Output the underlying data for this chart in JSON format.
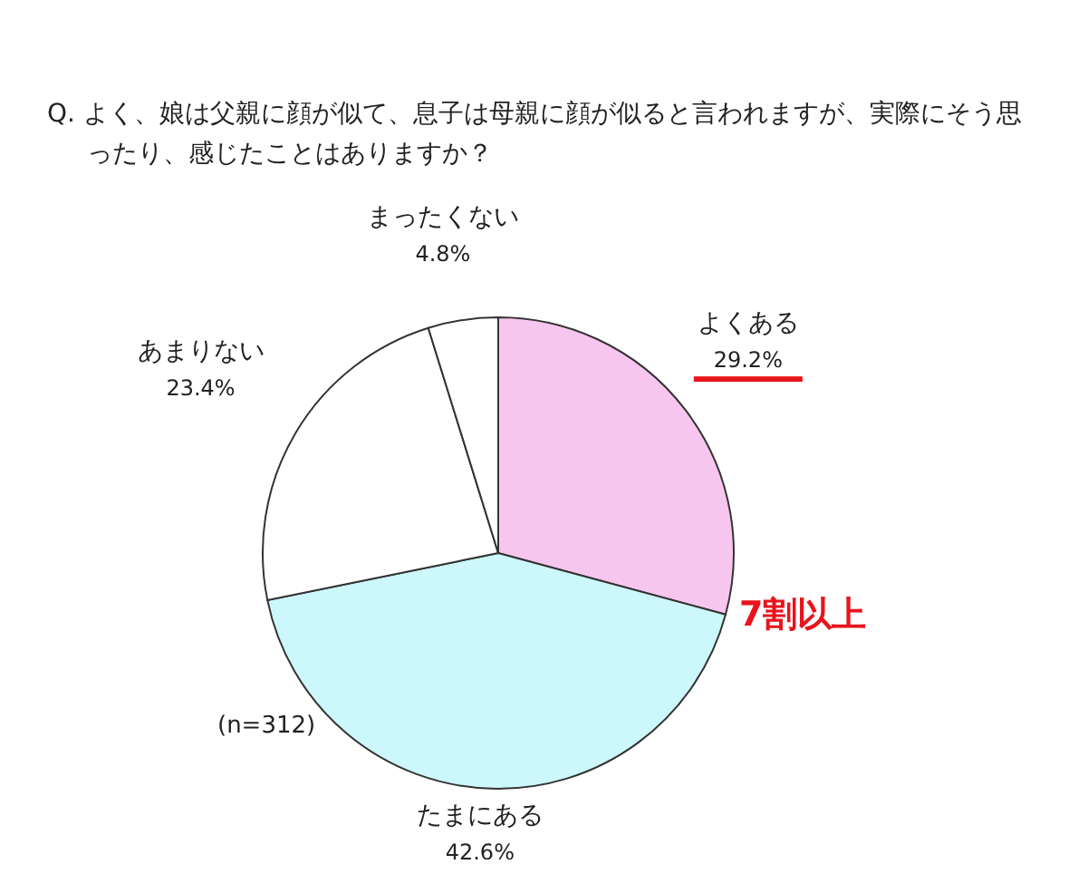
{
  "chart_data": {
    "type": "pie",
    "title": "Q. よく、娘は父親に顔が似て、息子は母親に顔が似ると言われますが、実際にそう思ったり、感じたことはありますか？",
    "categories": [
      "よくある",
      "たまにある",
      "あまりない",
      "まったくない"
    ],
    "values": [
      29.2,
      42.6,
      23.4,
      4.8
    ],
    "value_labels": [
      "29.2%",
      "42.6%",
      "23.4%",
      "4.8%"
    ],
    "colors": [
      "#f7c6ef",
      "#ccf7fb",
      "#ffffff",
      "#ffffff"
    ],
    "annotations": [
      "(n=312)",
      "7割以上"
    ]
  }
}
